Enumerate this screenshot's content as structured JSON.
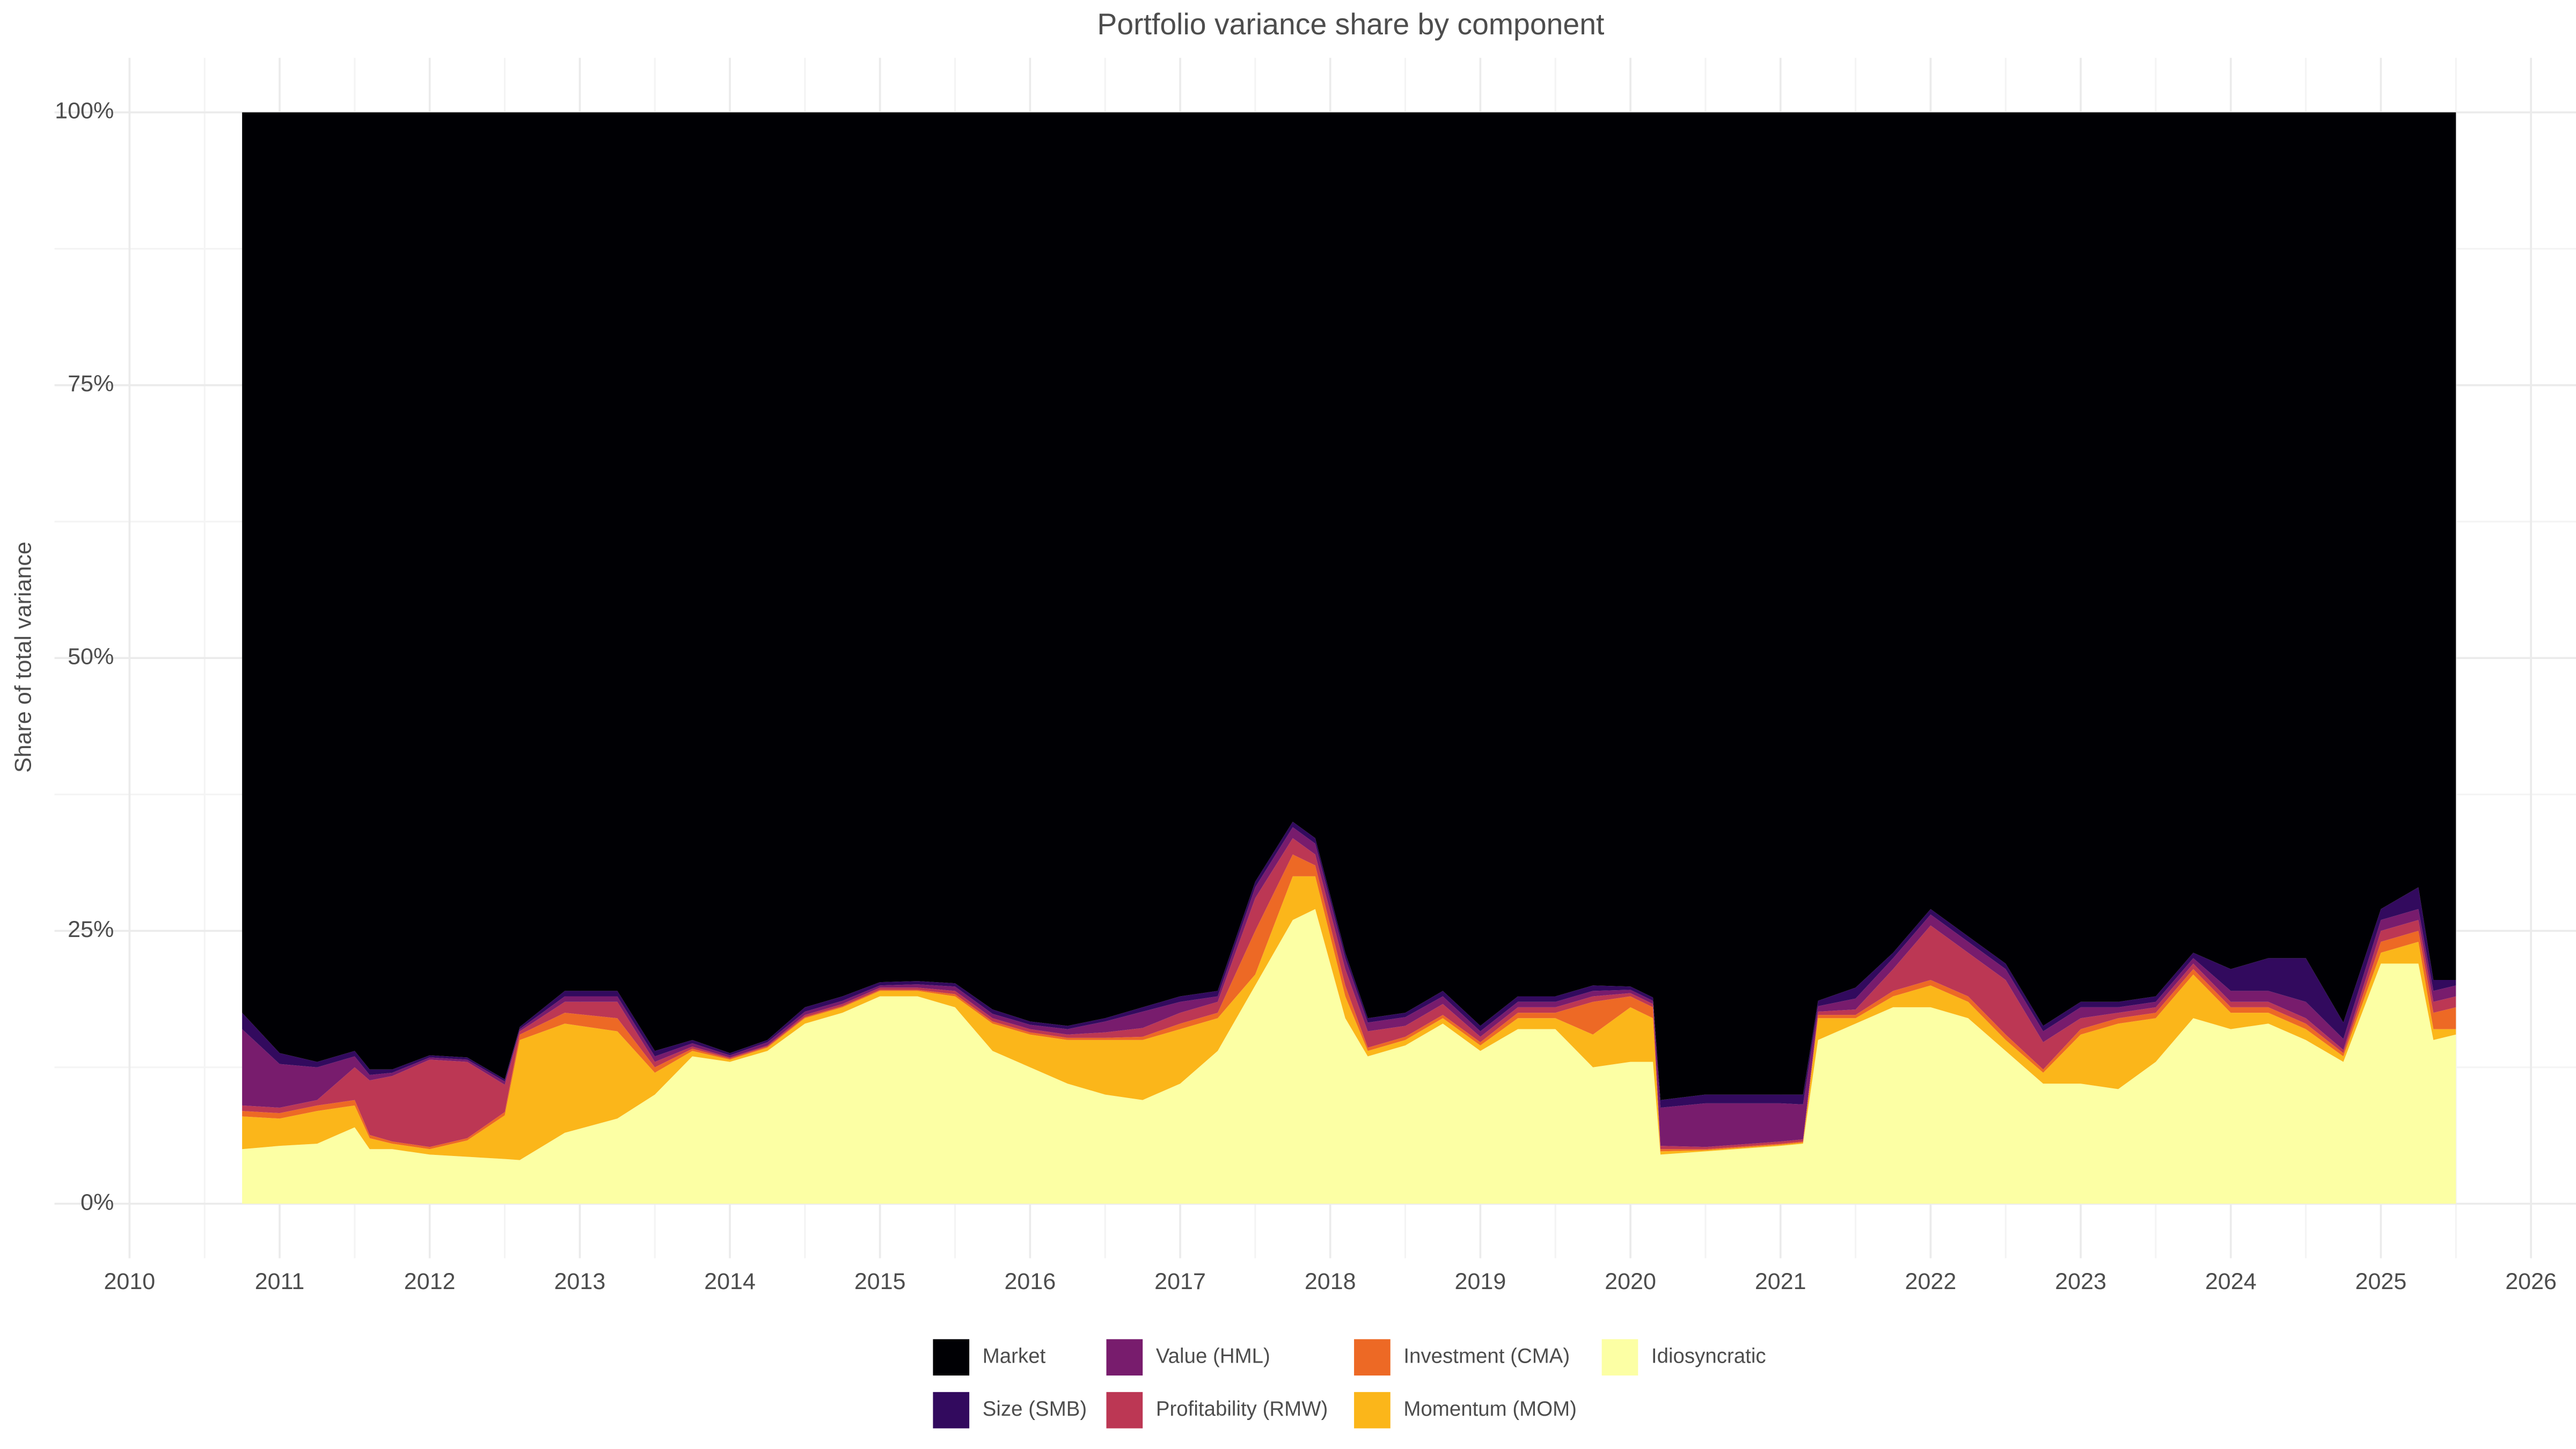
{
  "chart_data": {
    "type": "stacked_area",
    "title": "Portfolio variance share by component",
    "y_label": "Share of total variance",
    "xlim": [
      2009.5,
      2026.3
    ],
    "xticks": [
      2010,
      2011,
      2012,
      2013,
      2014,
      2015,
      2016,
      2017,
      2018,
      2019,
      2020,
      2021,
      2022,
      2023,
      2024,
      2025,
      2026
    ],
    "ylim": [
      -5,
      105
    ],
    "yticks": [
      {
        "value": 0,
        "label": "0%"
      },
      {
        "value": 25,
        "label": "25%"
      },
      {
        "value": 50,
        "label": "50%"
      },
      {
        "value": 75,
        "label": "75%"
      },
      {
        "value": 100,
        "label": "100%"
      }
    ],
    "grid": true,
    "legend": "bottom",
    "x": [
      2010.75,
      2011,
      2011.25,
      2011.5,
      2011.6,
      2011.75,
      2012,
      2012.25,
      2012.5,
      2012.6,
      2012.9,
      2013.25,
      2013.5,
      2013.75,
      2014,
      2014.25,
      2014.5,
      2014.75,
      2015,
      2015.25,
      2015.5,
      2015.75,
      2016,
      2016.25,
      2016.5,
      2016.75,
      2017,
      2017.25,
      2017.5,
      2017.75,
      2017.9,
      2018.1,
      2018.25,
      2018.5,
      2018.75,
      2019,
      2019.25,
      2019.5,
      2019.75,
      2020,
      2020.15,
      2020.2,
      2020.5,
      2021,
      2021.15,
      2021.25,
      2021.5,
      2021.75,
      2022,
      2022.25,
      2022.5,
      2022.75,
      2023,
      2023.25,
      2023.5,
      2023.75,
      2024,
      2024.25,
      2024.5,
      2024.75,
      2025,
      2025.25,
      2025.35,
      2025.5
    ],
    "series": [
      {
        "name": "Market",
        "color": "#000004",
        "values": [
          82.5,
          86.2,
          87,
          86,
          87.7,
          87.7,
          86.4,
          86.6,
          88.6,
          83.8,
          80.5,
          80.5,
          86,
          85,
          86.2,
          85,
          82,
          81,
          79.7,
          79.6,
          79.8,
          82.2,
          83.3,
          83.7,
          83,
          82,
          81,
          80.5,
          70.5,
          65,
          66.5,
          77,
          83,
          82.5,
          80.5,
          83.7,
          81,
          81,
          80,
          80.1,
          81.1,
          90.5,
          90,
          90,
          90,
          81.4,
          80.2,
          77,
          73,
          75.5,
          78,
          83.7,
          81.5,
          81.5,
          81,
          77,
          78.5,
          77.5,
          77.5,
          83.4,
          73,
          71,
          79.5,
          79.5
        ]
      },
      {
        "name": "Size (SMB)",
        "color": "#320a5e",
        "values": [
          1.5,
          1,
          0.5,
          0.5,
          0.5,
          0.3,
          0.2,
          0.2,
          0.2,
          0.2,
          0.5,
          0.5,
          0.5,
          0.3,
          0.2,
          0.2,
          0.4,
          0.4,
          0.3,
          0.3,
          0.3,
          0.4,
          0.3,
          0.3,
          0.3,
          0.4,
          0.5,
          0.5,
          0.5,
          0.5,
          0.5,
          0.5,
          0.4,
          0.4,
          0.5,
          0.5,
          0.5,
          0.5,
          0.5,
          0.3,
          0.3,
          0.7,
          0.8,
          0.8,
          0.9,
          0.5,
          1,
          0.5,
          0.5,
          0.5,
          0.5,
          0.5,
          0.5,
          0.5,
          0.5,
          0.5,
          2,
          3,
          4,
          1.5,
          1,
          2,
          1,
          0.5
        ]
      },
      {
        "name": "Value (HML)",
        "color": "#781c6d",
        "values": [
          7,
          4,
          3,
          1,
          0.5,
          0.3,
          0.2,
          0.2,
          0.3,
          0.2,
          0.5,
          0.5,
          0.5,
          0.3,
          0.2,
          0.3,
          0.3,
          0.3,
          0.2,
          0.3,
          0.4,
          0.4,
          0.4,
          0.5,
          1,
          1.5,
          1,
          0.5,
          1,
          1,
          1,
          1,
          0.8,
          0.8,
          0.7,
          0.5,
          0.5,
          0.5,
          0.5,
          0.3,
          0.3,
          3.5,
          4,
          3.5,
          3.2,
          0.5,
          1,
          1,
          1,
          1,
          1,
          1,
          1,
          0.5,
          0.5,
          0.5,
          1,
          1,
          1.5,
          1,
          1,
          1,
          1,
          1
        ]
      },
      {
        "name": "Profitability (RMW)",
        "color": "#bc3754",
        "values": [
          0.5,
          0.5,
          0.5,
          3,
          5,
          6,
          8,
          7,
          2.5,
          0.3,
          1,
          1.5,
          0.5,
          0.2,
          0.1,
          0.1,
          0.2,
          0.2,
          0.2,
          0.2,
          0.3,
          0.3,
          0.3,
          0.3,
          0.5,
          0.8,
          1,
          1,
          3,
          1.5,
          1,
          1.5,
          1.5,
          1,
          1,
          0.5,
          0.5,
          0.5,
          0.5,
          0.3,
          0.3,
          0.3,
          0.2,
          0.2,
          0.2,
          0.3,
          0.5,
          2,
          5,
          4,
          5,
          2.5,
          1,
          0.5,
          0.5,
          0.5,
          0.5,
          0.5,
          0.5,
          0.3,
          1,
          1,
          1,
          1
        ]
      },
      {
        "name": "Investment (CMA)",
        "color": "#ed6925",
        "values": [
          0.5,
          0.5,
          0.5,
          0.5,
          0.3,
          0.2,
          0.2,
          0.2,
          0.3,
          0.5,
          1,
          1.2,
          0.5,
          0.2,
          0.1,
          0.1,
          0.1,
          0.1,
          0.1,
          0.1,
          0.2,
          0.2,
          0.2,
          0.2,
          0.2,
          0.3,
          0.5,
          0.5,
          4,
          2,
          1,
          1,
          0.3,
          0.3,
          0.3,
          0.3,
          0.5,
          0.5,
          3,
          1,
          1,
          0.2,
          0.1,
          0.1,
          0.1,
          0.3,
          0.3,
          0.5,
          0.5,
          0.5,
          0.5,
          0.3,
          0.5,
          0.5,
          0.5,
          0.5,
          0.5,
          0.5,
          0.5,
          0.3,
          1,
          1,
          1.5,
          2
        ]
      },
      {
        "name": "Momentum (MOM)",
        "color": "#fbb61a",
        "values": [
          3,
          2.5,
          3,
          2,
          1,
          0.5,
          0.5,
          1.5,
          4,
          11,
          10,
          8,
          2,
          0.5,
          0.2,
          0.3,
          0.5,
          0.5,
          0.5,
          0.5,
          1,
          2.5,
          3,
          4,
          5,
          5.5,
          5,
          3,
          1,
          4,
          3,
          2,
          0.5,
          0.5,
          0.5,
          0.5,
          1,
          1,
          3,
          5,
          4,
          0.3,
          0.1,
          0.1,
          0.1,
          2,
          0.5,
          1,
          2,
          1.5,
          1,
          1,
          4.5,
          6,
          4,
          4,
          1.5,
          1,
          1,
          0.5,
          1,
          2,
          1,
          0.5
        ]
      },
      {
        "name": "Idiosyncratic",
        "color": "#fcffa4",
        "values": [
          5,
          5.3,
          5.5,
          7,
          5,
          5,
          4.5,
          4.3,
          4.1,
          4,
          6.5,
          7.8,
          10,
          13.5,
          13,
          14,
          16.5,
          17.5,
          19,
          19,
          18,
          14,
          12.5,
          11,
          10,
          9.5,
          11,
          14,
          20,
          26,
          27,
          17,
          13.5,
          14.5,
          16.5,
          14,
          16,
          16,
          12.5,
          13,
          13,
          4.5,
          4.8,
          5.3,
          5.5,
          15,
          16.5,
          18,
          18,
          17,
          14,
          11,
          11,
          10.5,
          13,
          17,
          16,
          16.5,
          15,
          13,
          22,
          22,
          15,
          15.5
        ]
      }
    ]
  }
}
